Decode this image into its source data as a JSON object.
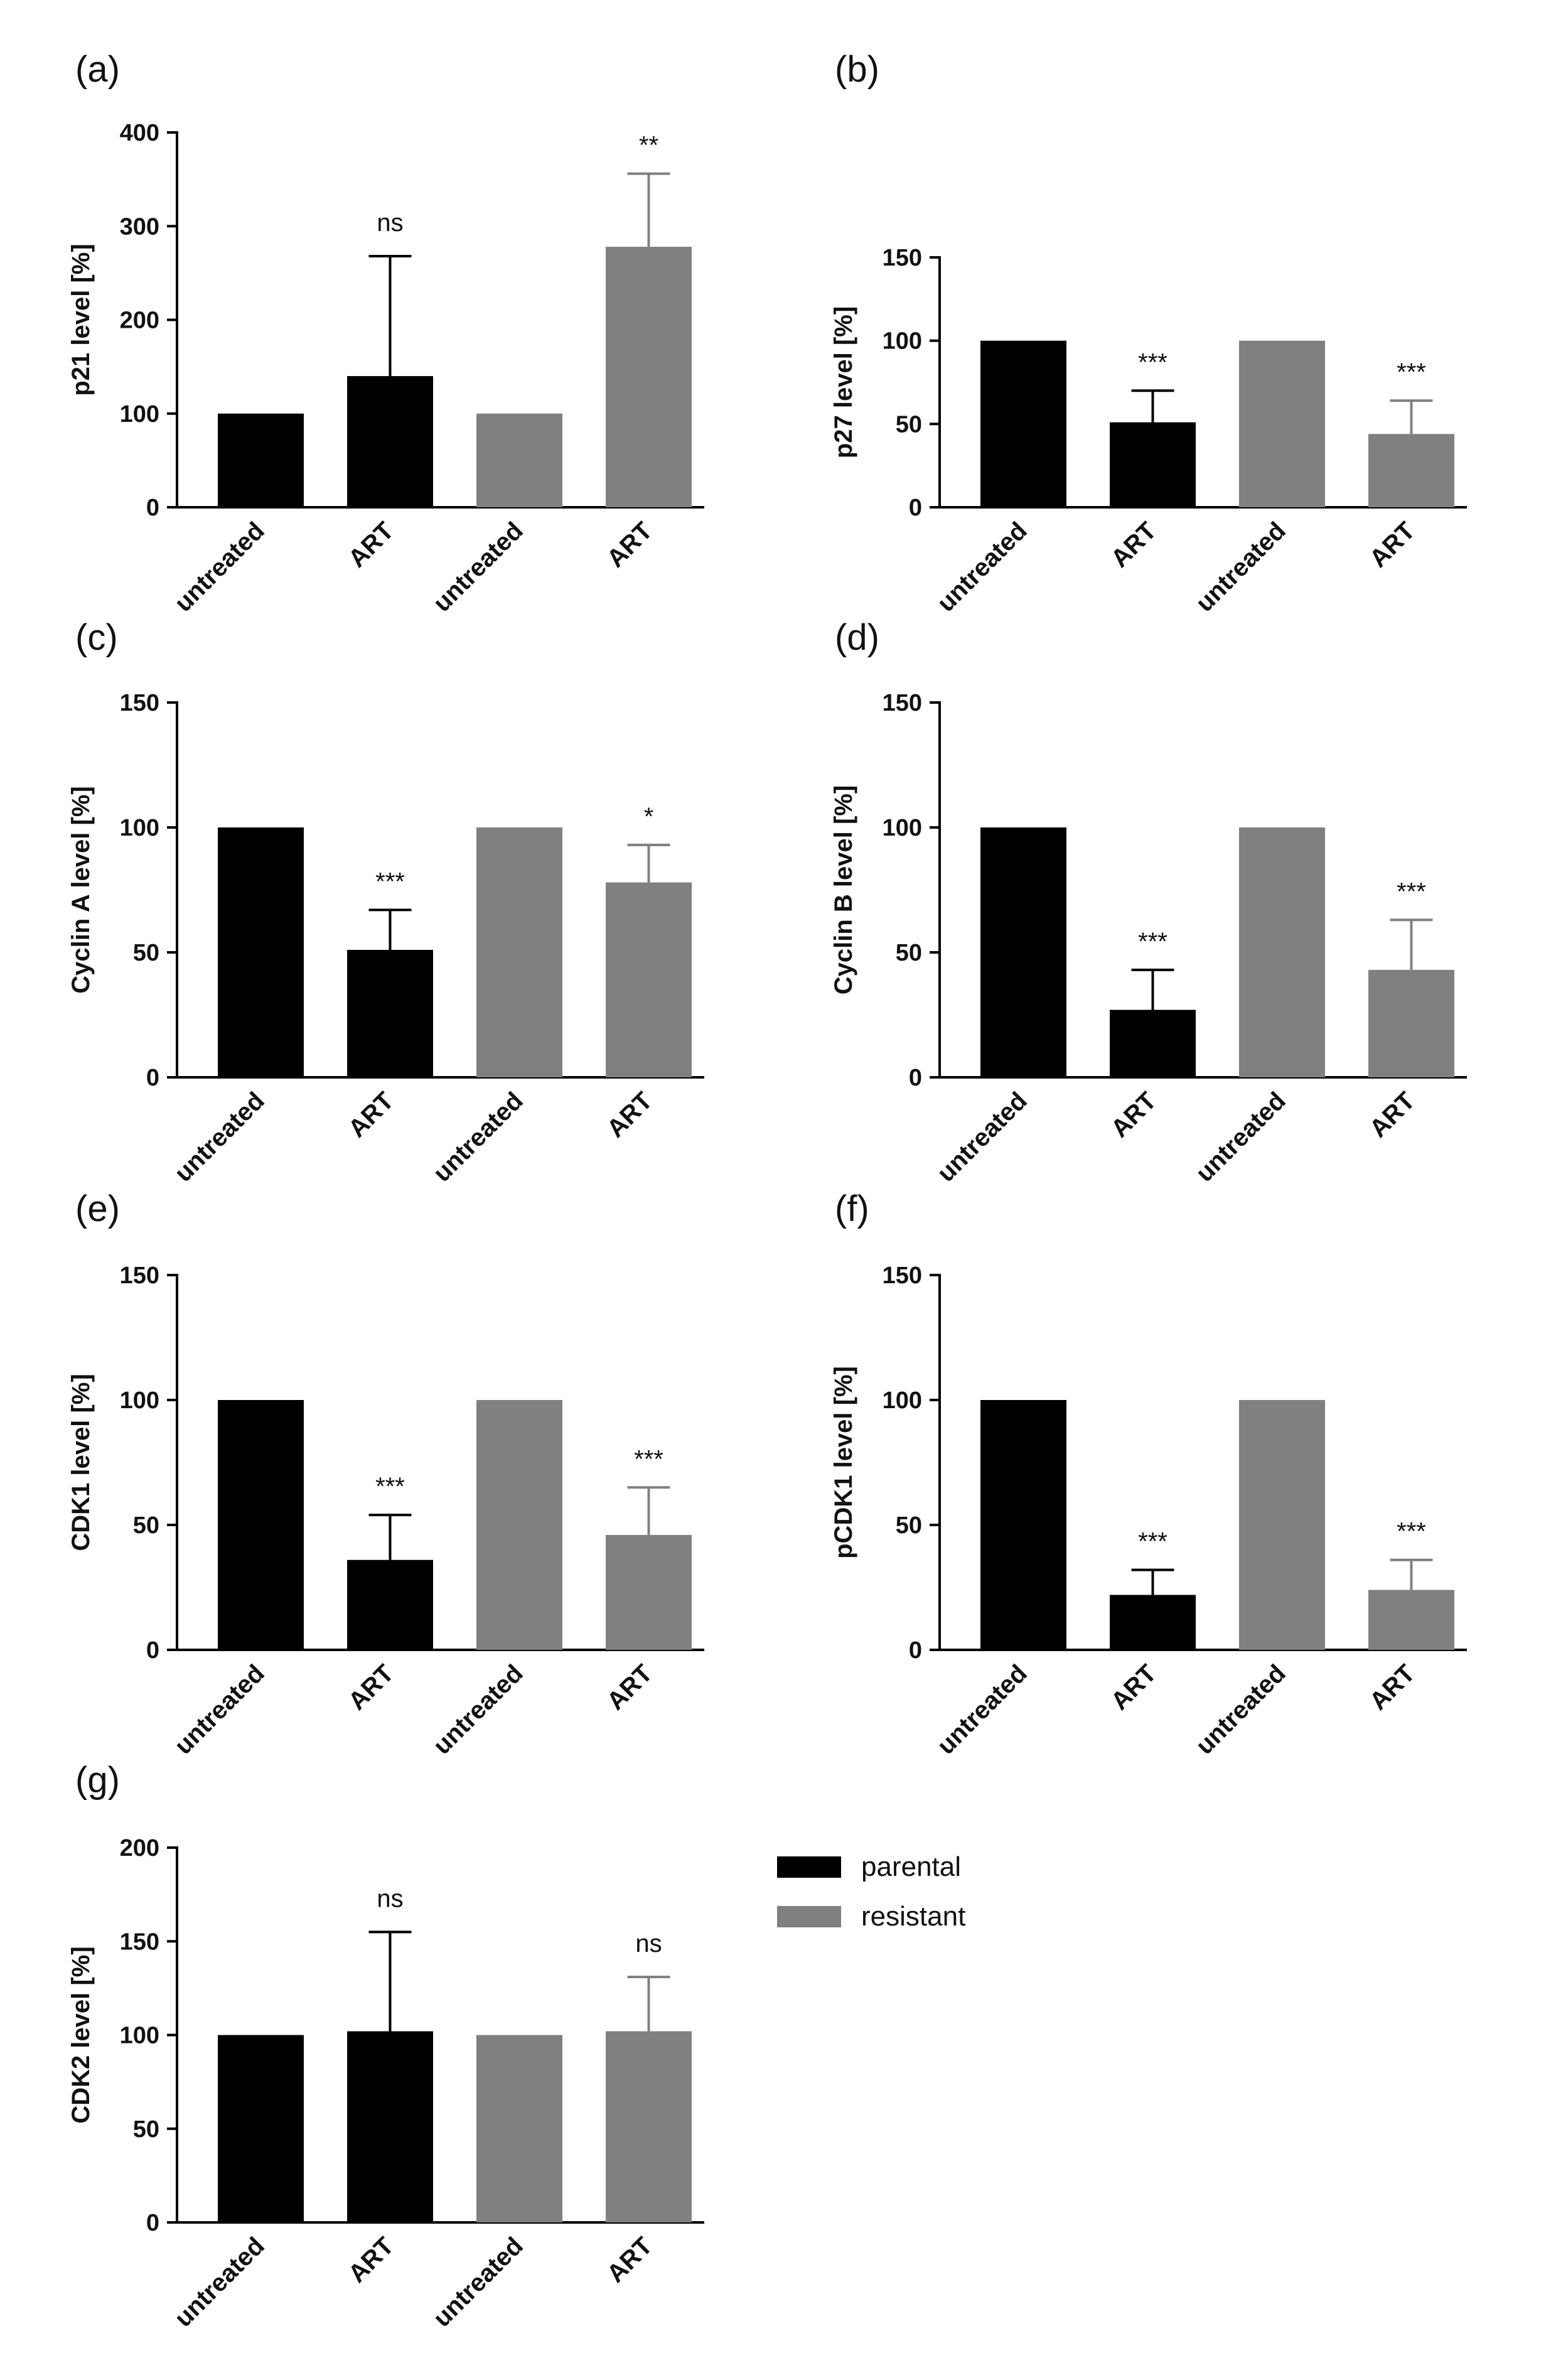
{
  "figure": {
    "colors": {
      "parental": "#000000",
      "resistant": "#808080",
      "axis": "#000000"
    }
  },
  "legend": {
    "entries": [
      {
        "label": "parental",
        "color": "#000000"
      },
      {
        "label": "resistant",
        "color": "#808080"
      }
    ]
  },
  "chart_data": [
    {
      "panel": "(a)",
      "type": "bar",
      "title": "",
      "xlabel": "",
      "ylabel": "p21 level [%]",
      "ylim": [
        0,
        400
      ],
      "yticks": [
        0,
        100,
        200,
        300,
        400
      ],
      "categories": [
        "untreated",
        "ART",
        "untreated",
        "ART"
      ],
      "groups": [
        "parental",
        "parental",
        "resistant",
        "resistant"
      ],
      "values": [
        100,
        140,
        100,
        278
      ],
      "errors": [
        0,
        128,
        0,
        78
      ],
      "significance": [
        "",
        "ns",
        "",
        "**"
      ]
    },
    {
      "panel": "(b)",
      "type": "bar",
      "title": "",
      "xlabel": "",
      "ylabel": "p27 level [%]",
      "ylim": [
        0,
        150
      ],
      "yticks": [
        0,
        50,
        100,
        150
      ],
      "categories": [
        "untreated",
        "ART",
        "untreated",
        "ART"
      ],
      "groups": [
        "parental",
        "parental",
        "resistant",
        "resistant"
      ],
      "values": [
        100,
        51,
        100,
        44
      ],
      "errors": [
        0,
        19,
        0,
        20
      ],
      "significance": [
        "",
        "***",
        "",
        "***"
      ]
    },
    {
      "panel": "(c)",
      "type": "bar",
      "title": "",
      "xlabel": "",
      "ylabel": "Cyclin A level [%]",
      "ylim": [
        0,
        150
      ],
      "yticks": [
        0,
        50,
        100,
        150
      ],
      "categories": [
        "untreated",
        "ART",
        "untreated",
        "ART"
      ],
      "groups": [
        "parental",
        "parental",
        "resistant",
        "resistant"
      ],
      "values": [
        100,
        51,
        100,
        78
      ],
      "errors": [
        0,
        16,
        0,
        15
      ],
      "significance": [
        "",
        "***",
        "",
        "*"
      ]
    },
    {
      "panel": "(d)",
      "type": "bar",
      "title": "",
      "xlabel": "",
      "ylabel": "Cyclin B level [%]",
      "ylim": [
        0,
        150
      ],
      "yticks": [
        0,
        50,
        100,
        150
      ],
      "categories": [
        "untreated",
        "ART",
        "untreated",
        "ART"
      ],
      "groups": [
        "parental",
        "parental",
        "resistant",
        "resistant"
      ],
      "values": [
        100,
        27,
        100,
        43
      ],
      "errors": [
        0,
        16,
        0,
        20
      ],
      "significance": [
        "",
        "***",
        "",
        "***"
      ]
    },
    {
      "panel": "(e)",
      "type": "bar",
      "title": "",
      "xlabel": "",
      "ylabel": "CDK1 level [%]",
      "ylim": [
        0,
        150
      ],
      "yticks": [
        0,
        50,
        100,
        150
      ],
      "categories": [
        "untreated",
        "ART",
        "untreated",
        "ART"
      ],
      "groups": [
        "parental",
        "parental",
        "resistant",
        "resistant"
      ],
      "values": [
        100,
        36,
        100,
        46
      ],
      "errors": [
        0,
        18,
        0,
        19
      ],
      "significance": [
        "",
        "***",
        "",
        "***"
      ]
    },
    {
      "panel": "(f)",
      "type": "bar",
      "title": "",
      "xlabel": "",
      "ylabel": "pCDK1 level [%]",
      "ylim": [
        0,
        150
      ],
      "yticks": [
        0,
        50,
        100,
        150
      ],
      "categories": [
        "untreated",
        "ART",
        "untreated",
        "ART"
      ],
      "groups": [
        "parental",
        "parental",
        "resistant",
        "resistant"
      ],
      "values": [
        100,
        22,
        100,
        24
      ],
      "errors": [
        0,
        10,
        0,
        12
      ],
      "significance": [
        "",
        "***",
        "",
        "***"
      ]
    },
    {
      "panel": "(g)",
      "type": "bar",
      "title": "",
      "xlabel": "",
      "ylabel": "CDK2 level [%]",
      "ylim": [
        0,
        200
      ],
      "yticks": [
        0,
        50,
        100,
        150,
        200
      ],
      "categories": [
        "untreated",
        "ART",
        "untreated",
        "ART"
      ],
      "groups": [
        "parental",
        "parental",
        "resistant",
        "resistant"
      ],
      "values": [
        100,
        102,
        100,
        102
      ],
      "errors": [
        0,
        53,
        0,
        29
      ],
      "significance": [
        "",
        "ns",
        "",
        "ns"
      ]
    }
  ]
}
